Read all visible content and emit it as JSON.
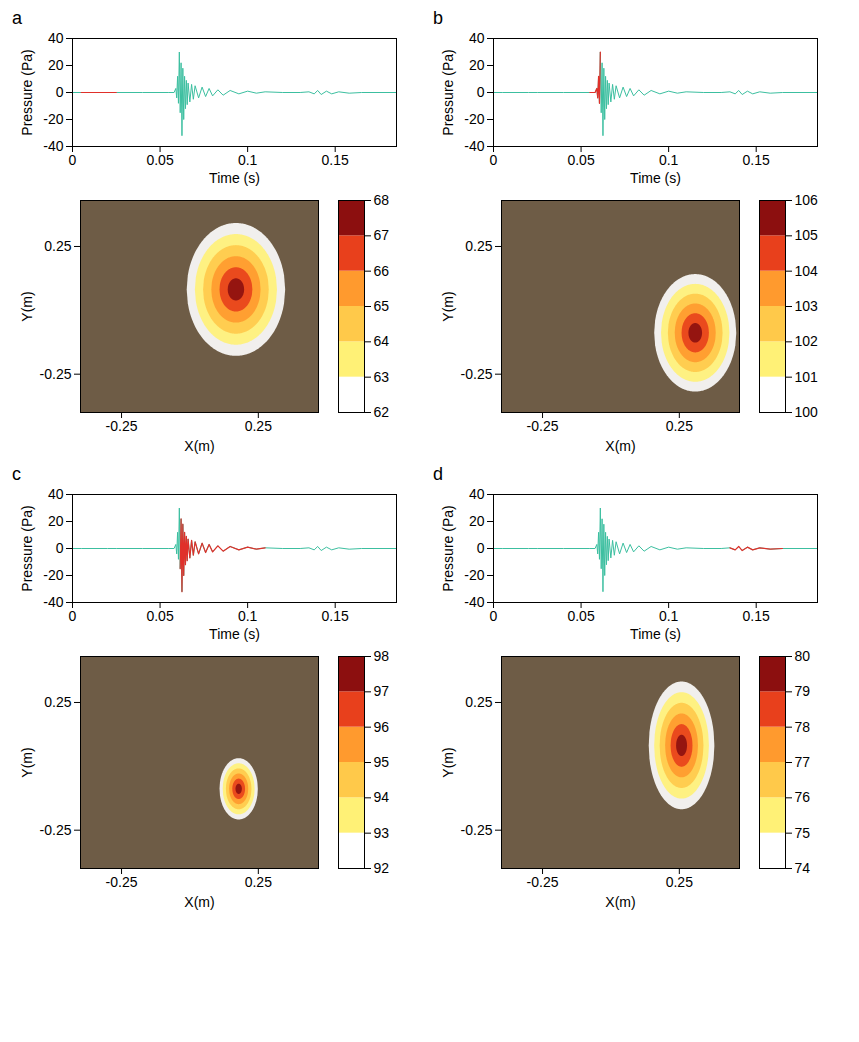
{
  "chart_data": [
    {
      "label": "a",
      "waveform": {
        "type": "line",
        "x_label": "Time (s)",
        "y_label": "Pressure (Pa)",
        "xlim": [
          0,
          0.185
        ],
        "xticks": [
          0,
          0.05,
          0.1,
          0.15
        ],
        "ylim": [
          -40,
          40
        ],
        "yticks": [
          -40,
          -20,
          0,
          20,
          40
        ],
        "color": "#3cbfa0",
        "highlight": {
          "x": [
            0.005,
            0.025
          ],
          "color": "#e0302a"
        }
      },
      "map": {
        "type": "heatmap",
        "x_label": "X(m)",
        "y_label": "Y(m)",
        "xlim": [
          -0.4,
          0.47
        ],
        "ylim": [
          -0.4,
          0.43
        ],
        "xticks": [
          -0.25,
          0.25
        ],
        "yticks": [
          -0.25,
          0.25
        ],
        "source": {
          "x": 0.17,
          "y": 0.08,
          "rx": 0.18,
          "ry": 0.26
        },
        "colorbar": {
          "lim": [
            62,
            68
          ],
          "ticks": [
            62,
            63,
            64,
            65,
            66,
            67,
            68
          ],
          "colors": [
            "#ffffff",
            "#fff176",
            "#ffc94a",
            "#ff9a2e",
            "#e8401c",
            "#8c0f0f"
          ]
        }
      }
    },
    {
      "label": "b",
      "waveform": {
        "type": "line",
        "x_label": "Time (s)",
        "y_label": "Pressure (Pa)",
        "xlim": [
          0,
          0.185
        ],
        "xticks": [
          0,
          0.05,
          0.1,
          0.15
        ],
        "ylim": [
          -40,
          40
        ],
        "yticks": [
          -40,
          -20,
          0,
          20,
          40
        ],
        "color": "#3cbfa0",
        "highlight": {
          "x": [
            0.055,
            0.061
          ],
          "color": "#e0302a"
        }
      },
      "map": {
        "type": "heatmap",
        "x_label": "X(m)",
        "y_label": "Y(m)",
        "xlim": [
          -0.4,
          0.47
        ],
        "ylim": [
          -0.4,
          0.43
        ],
        "xticks": [
          -0.25,
          0.25
        ],
        "yticks": [
          -0.25,
          0.25
        ],
        "source": {
          "x": 0.31,
          "y": -0.09,
          "rx": 0.15,
          "ry": 0.23
        },
        "colorbar": {
          "lim": [
            100,
            106
          ],
          "ticks": [
            100,
            101,
            102,
            103,
            104,
            105,
            106
          ],
          "colors": [
            "#ffffff",
            "#fff176",
            "#ffc94a",
            "#ff9a2e",
            "#e8401c",
            "#8c0f0f"
          ]
        }
      }
    },
    {
      "label": "c",
      "waveform": {
        "type": "line",
        "x_label": "Time (s)",
        "y_label": "Pressure (Pa)",
        "xlim": [
          0,
          0.185
        ],
        "xticks": [
          0,
          0.05,
          0.1,
          0.15
        ],
        "ylim": [
          -40,
          40
        ],
        "yticks": [
          -40,
          -20,
          0,
          20,
          40
        ],
        "color": "#3cbfa0",
        "highlight": {
          "x": [
            0.0615,
            0.11
          ],
          "color": "#e0302a"
        }
      },
      "map": {
        "type": "heatmap",
        "x_label": "X(m)",
        "y_label": "Y(m)",
        "xlim": [
          -0.4,
          0.47
        ],
        "ylim": [
          -0.4,
          0.43
        ],
        "xticks": [
          -0.25,
          0.25
        ],
        "yticks": [
          -0.25,
          0.25
        ],
        "source": {
          "x": 0.18,
          "y": -0.09,
          "rx": 0.07,
          "ry": 0.12
        },
        "colorbar": {
          "lim": [
            92,
            98
          ],
          "ticks": [
            92,
            93,
            94,
            95,
            96,
            97,
            98
          ],
          "colors": [
            "#ffffff",
            "#fff176",
            "#ffc94a",
            "#ff9a2e",
            "#e8401c",
            "#8c0f0f"
          ]
        }
      }
    },
    {
      "label": "d",
      "waveform": {
        "type": "line",
        "x_label": "Time (s)",
        "y_label": "Pressure (Pa)",
        "xlim": [
          0,
          0.185
        ],
        "xticks": [
          0,
          0.05,
          0.1,
          0.15
        ],
        "ylim": [
          -40,
          40
        ],
        "yticks": [
          -40,
          -20,
          0,
          20,
          40
        ],
        "color": "#3cbfa0",
        "highlight": {
          "x": [
            0.135,
            0.165
          ],
          "color": "#e0302a"
        }
      },
      "map": {
        "type": "heatmap",
        "x_label": "X(m)",
        "y_label": "Y(m)",
        "xlim": [
          -0.4,
          0.47
        ],
        "ylim": [
          -0.4,
          0.43
        ],
        "xticks": [
          -0.25,
          0.25
        ],
        "yticks": [
          -0.25,
          0.25
        ],
        "source": {
          "x": 0.26,
          "y": 0.08,
          "rx": 0.12,
          "ry": 0.25
        },
        "colorbar": {
          "lim": [
            74,
            80
          ],
          "ticks": [
            74,
            75,
            76,
            77,
            78,
            79,
            80
          ],
          "colors": [
            "#ffffff",
            "#fff176",
            "#ffc94a",
            "#ff9a2e",
            "#e8401c",
            "#8c0f0f"
          ]
        }
      }
    }
  ],
  "signal": {
    "x": [
      0,
      0.005,
      0.01,
      0.02,
      0.025,
      0.04,
      0.055,
      0.058,
      0.059,
      0.0595,
      0.06,
      0.0605,
      0.061,
      0.0615,
      0.062,
      0.0625,
      0.063,
      0.0635,
      0.064,
      0.0645,
      0.065,
      0.0655,
      0.066,
      0.067,
      0.068,
      0.069,
      0.07,
      0.072,
      0.074,
      0.076,
      0.078,
      0.08,
      0.083,
      0.086,
      0.09,
      0.095,
      0.1,
      0.105,
      0.11,
      0.12,
      0.13,
      0.135,
      0.138,
      0.14,
      0.142,
      0.145,
      0.148,
      0.152,
      0.158,
      0.165,
      0.185
    ],
    "values": [
      0,
      0,
      0,
      0,
      0,
      0,
      0,
      0,
      3,
      -4,
      12,
      -8,
      30,
      -15,
      22,
      -32,
      18,
      -20,
      12,
      -12,
      9,
      -9,
      7,
      -7,
      6,
      -5,
      5,
      -4,
      4,
      -3,
      3,
      -2.5,
      2,
      -2,
      1.5,
      -1,
      1,
      -0.5,
      0.5,
      0,
      0,
      0.5,
      -1,
      1.5,
      -1.5,
      1,
      -1,
      0.5,
      -0.5,
      0,
      0
    ]
  }
}
